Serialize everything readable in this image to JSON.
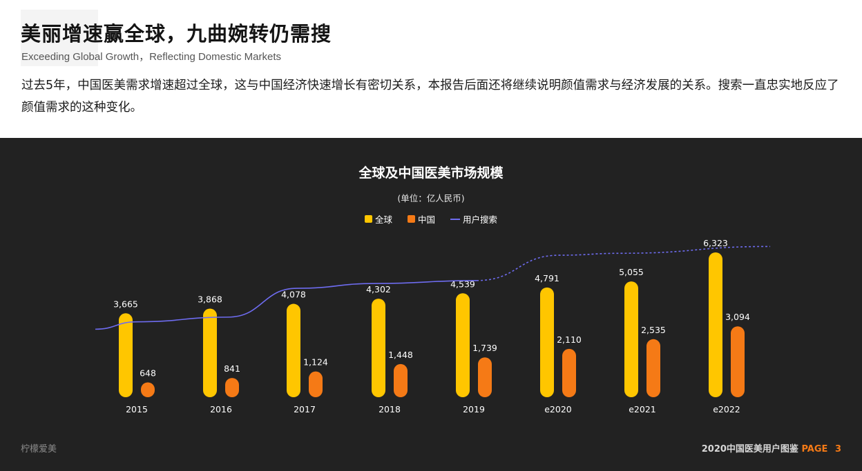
{
  "header": {
    "title": "美丽增速赢全球，九曲婉转仍需搜",
    "subtitle": "Exceeding Global Growth，Reflecting Domestic Markets",
    "description": "过去5年，中国医美需求增速超过全球，这与中国经济快速增长有密切关系，本报告后面还将继续说明颜值需求与经济发展的关系。搜索一直忠实地反应了颜值需求的这种变化。"
  },
  "chart_data": {
    "type": "bar",
    "title": "全球及中国医美市场规模",
    "unit": "(单位：亿人民币)",
    "categories": [
      "2015",
      "2016",
      "2017",
      "2018",
      "2019",
      "e2020",
      "e2021",
      "e2022"
    ],
    "series": [
      {
        "name": "全球",
        "values": [
          3665,
          3868,
          4078,
          4302,
          4539,
          4791,
          5055,
          6323
        ],
        "labels": [
          "3,665",
          "3,868",
          "4,078",
          "4,302",
          "4,539",
          "4,791",
          "5,055",
          "6,323"
        ],
        "color": "#ffc600"
      },
      {
        "name": "中国",
        "values": [
          648,
          841,
          1124,
          1448,
          1739,
          2110,
          2535,
          3094
        ],
        "labels": [
          "648",
          "841",
          "1,124",
          "1,448",
          "1,739",
          "2,110",
          "2,535",
          "3,094"
        ],
        "color": "#f57a16"
      }
    ],
    "line_series": {
      "name": "用户搜索",
      "color": "#6e6cf0",
      "y_unlabeled": true,
      "values": [
        3600,
        3980,
        4220,
        5700,
        5950,
        6100,
        7400,
        7500,
        7850
      ],
      "solid_until": 5
    },
    "ylim": [
      0,
      8500
    ],
    "grid": false,
    "legend_position": "top-center"
  },
  "footer": {
    "brand": "柠檬爱美",
    "report_name": "2020中国医美用户图鉴",
    "page_label": "PAGE",
    "page_number": "3"
  }
}
